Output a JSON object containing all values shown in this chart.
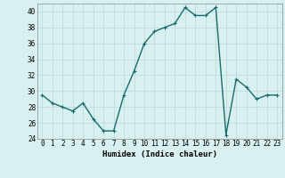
{
  "x": [
    0,
    1,
    2,
    3,
    4,
    5,
    6,
    7,
    8,
    9,
    10,
    11,
    12,
    13,
    14,
    15,
    16,
    17,
    18,
    19,
    20,
    21,
    22,
    23
  ],
  "y": [
    29.5,
    28.5,
    28.0,
    27.5,
    28.5,
    26.5,
    25.0,
    25.0,
    29.5,
    32.5,
    36.0,
    37.5,
    38.0,
    38.5,
    40.5,
    39.5,
    39.5,
    40.5,
    24.5,
    31.5,
    30.5,
    29.0,
    29.5,
    29.5
  ],
  "line_color": "#1a6b6b",
  "marker": "+",
  "marker_size": 3,
  "bg_color": "#d8f0f0",
  "grid_color": "#b8d8d8",
  "xlabel": "Humidex (Indice chaleur)",
  "ylim": [
    24,
    41
  ],
  "yticks": [
    24,
    26,
    28,
    30,
    32,
    34,
    36,
    38,
    40
  ],
  "xticks": [
    0,
    1,
    2,
    3,
    4,
    5,
    6,
    7,
    8,
    9,
    10,
    11,
    12,
    13,
    14,
    15,
    16,
    17,
    18,
    19,
    20,
    21,
    22,
    23
  ],
  "tick_fontsize": 5.5,
  "xlabel_fontsize": 6.5,
  "line_width": 1.0
}
